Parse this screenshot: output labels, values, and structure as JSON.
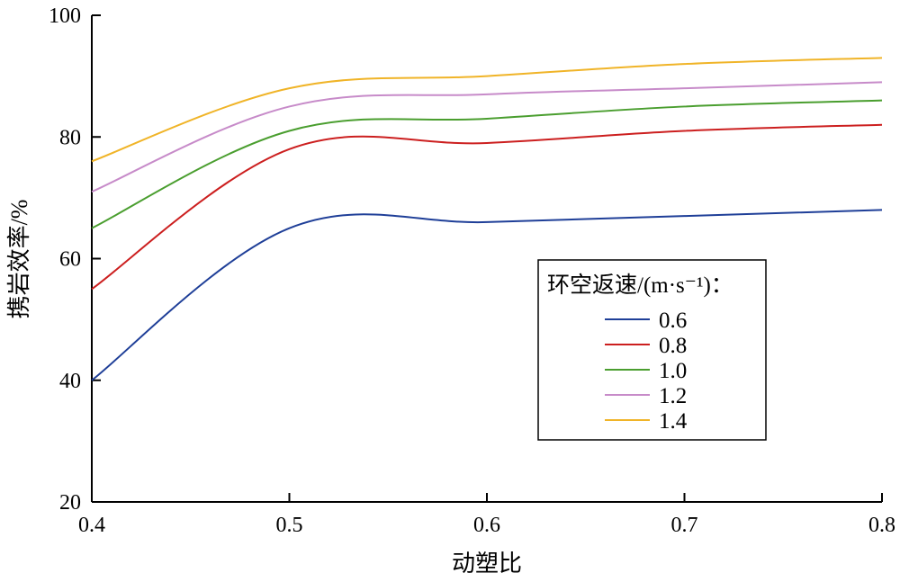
{
  "chart_data": {
    "type": "line",
    "xlabel": "动塑比",
    "ylabel": "携岩效率/%",
    "xlim": [
      0.4,
      0.8
    ],
    "ylim": [
      20,
      100
    ],
    "x_ticks": [
      "0.4",
      "0.5",
      "0.6",
      "0.7",
      "0.8"
    ],
    "y_ticks": [
      "20",
      "40",
      "60",
      "80",
      "100"
    ],
    "grid": false,
    "legend": {
      "title": "环空返速/(m·s⁻¹)：",
      "placement": "lower-right"
    },
    "x": [
      0.4,
      0.5,
      0.6,
      0.7,
      0.8
    ],
    "series": [
      {
        "name": "0.6",
        "color": "#1f3f98",
        "values": [
          40,
          65,
          66,
          67,
          68
        ]
      },
      {
        "name": "0.8",
        "color": "#cc1f1f",
        "values": [
          55,
          78,
          79,
          81,
          82
        ]
      },
      {
        "name": "1.0",
        "color": "#4a9e2f",
        "values": [
          65,
          81,
          83,
          85,
          86
        ]
      },
      {
        "name": "1.2",
        "color": "#c78bc9",
        "values": [
          71,
          85,
          87,
          88,
          89
        ]
      },
      {
        "name": "1.4",
        "color": "#f0b428",
        "values": [
          76,
          88,
          90,
          92,
          93
        ]
      }
    ]
  }
}
